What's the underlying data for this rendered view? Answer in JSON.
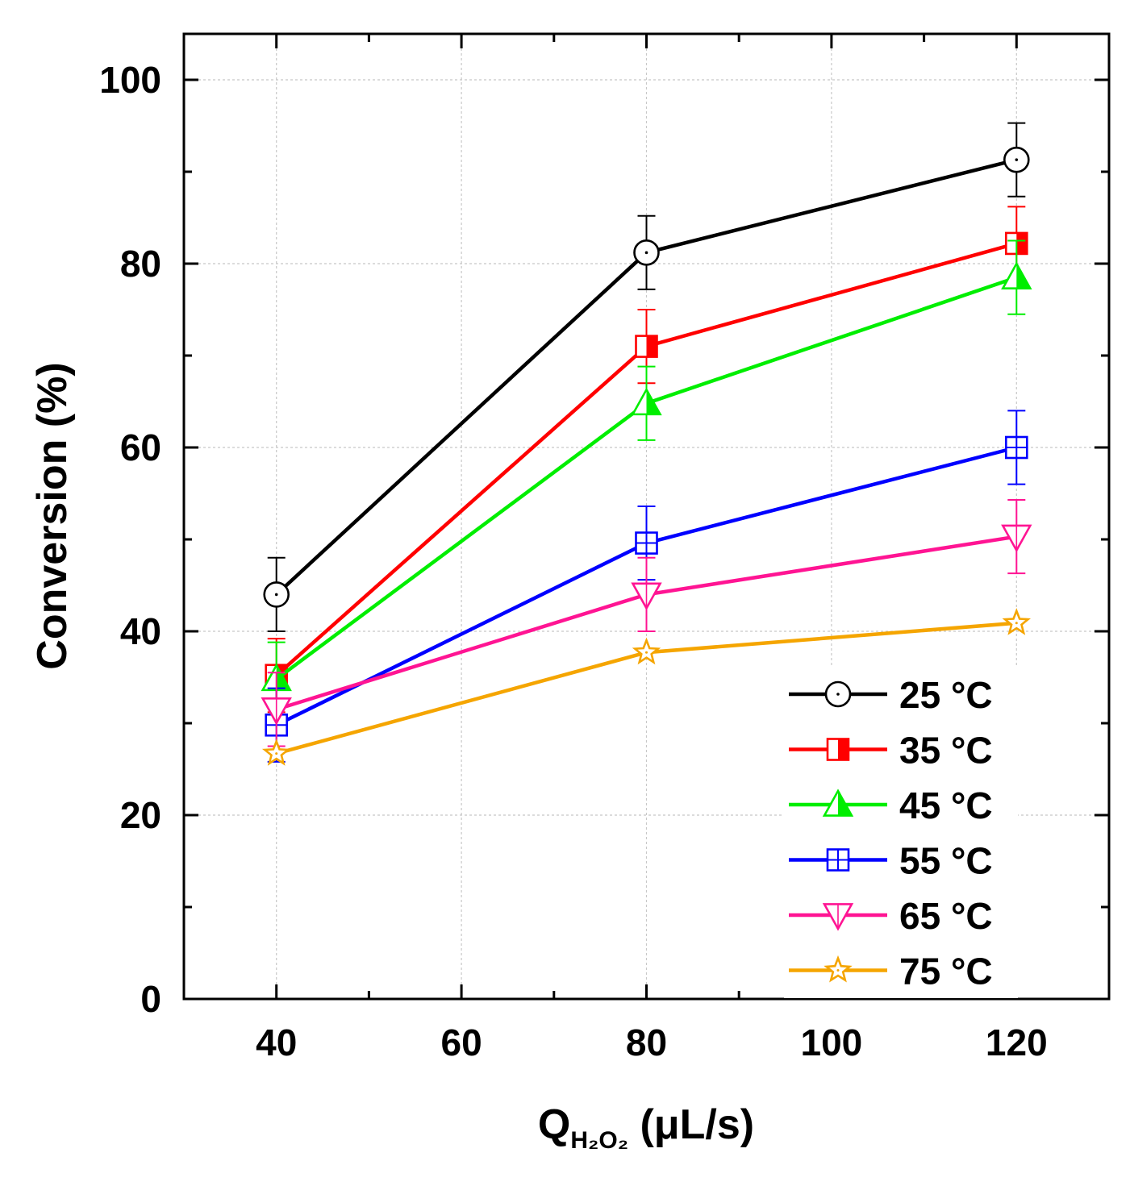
{
  "chart_data": {
    "type": "line",
    "title": "",
    "xlabel": {
      "main": "Q",
      "sub": "H₂O₂",
      "unit": " (μL/s)"
    },
    "ylabel": "Conversion (%)",
    "xlim": [
      30,
      130
    ],
    "ylim": [
      0,
      105
    ],
    "x_ticks": [
      40,
      60,
      80,
      100,
      120
    ],
    "x_minor_ticks": [
      50,
      70,
      90,
      110
    ],
    "y_ticks": [
      0,
      20,
      40,
      60,
      80,
      100
    ],
    "y_minor_ticks": [
      10,
      30,
      50,
      70,
      90
    ],
    "grid": true,
    "legend_position": "bottom-right",
    "x": [
      40,
      80,
      120
    ],
    "series": [
      {
        "name": "25 °C",
        "color": "#000000",
        "marker": "circle-dot",
        "values": [
          44,
          81.2,
          91.3
        ],
        "errors": [
          4,
          4,
          4
        ]
      },
      {
        "name": "35 °C",
        "color": "#ff0000",
        "marker": "square-half",
        "values": [
          35.2,
          71,
          82.2
        ],
        "errors": [
          4,
          4,
          4
        ]
      },
      {
        "name": "45 °C",
        "color": "#00ee00",
        "marker": "triangle-up",
        "values": [
          34.8,
          64.8,
          78.5
        ],
        "errors": [
          4,
          4,
          4
        ]
      },
      {
        "name": "55 °C",
        "color": "#0000ff",
        "marker": "square-cross",
        "values": [
          29.8,
          49.6,
          60
        ],
        "errors": [
          4,
          4,
          4
        ]
      },
      {
        "name": "65 °C",
        "color": "#ff1493",
        "marker": "triangle-down",
        "values": [
          31.5,
          44,
          50.3
        ],
        "errors": [
          4,
          4,
          4
        ]
      },
      {
        "name": "75 °C",
        "color": "#f5a500",
        "marker": "star",
        "values": [
          26.7,
          37.7,
          40.9
        ],
        "errors": [
          0,
          0,
          0
        ]
      }
    ]
  }
}
